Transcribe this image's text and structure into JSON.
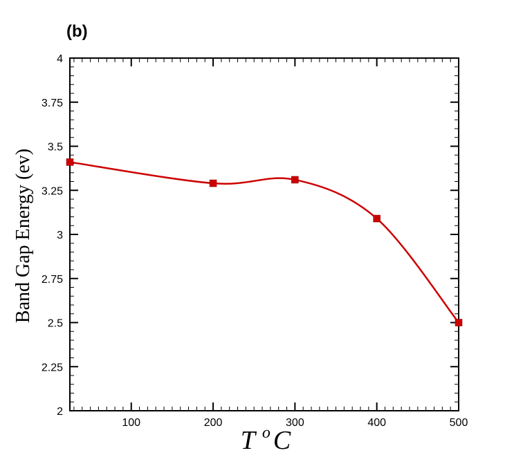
{
  "chart_data": {
    "type": "line",
    "panel_label": "(b)",
    "xlabel": {
      "base": "T",
      "superscript": "o",
      "unit": "C"
    },
    "ylabel": "Band Gap Energy (ev)",
    "xlim": [
      25,
      500
    ],
    "ylim": [
      2,
      4
    ],
    "x_ticks": [
      100,
      200,
      300,
      400,
      500
    ],
    "y_ticks": [
      2,
      2.25,
      2.5,
      2.75,
      3,
      3.25,
      3.5,
      3.75,
      4
    ],
    "y_tick_labels": [
      "2",
      "2.25",
      "2.5",
      "2.75",
      "3",
      "3.25",
      "3.5",
      "3.75",
      "4"
    ],
    "x_minor_step": 10,
    "y_minor_step": 0.05,
    "grid": false,
    "series": [
      {
        "x": [
          25,
          200,
          300,
          400,
          500
        ],
        "y": [
          3.41,
          3.29,
          3.31,
          3.09,
          2.5
        ],
        "color": "#cc0000",
        "marker": "square",
        "smooth": true
      }
    ]
  }
}
